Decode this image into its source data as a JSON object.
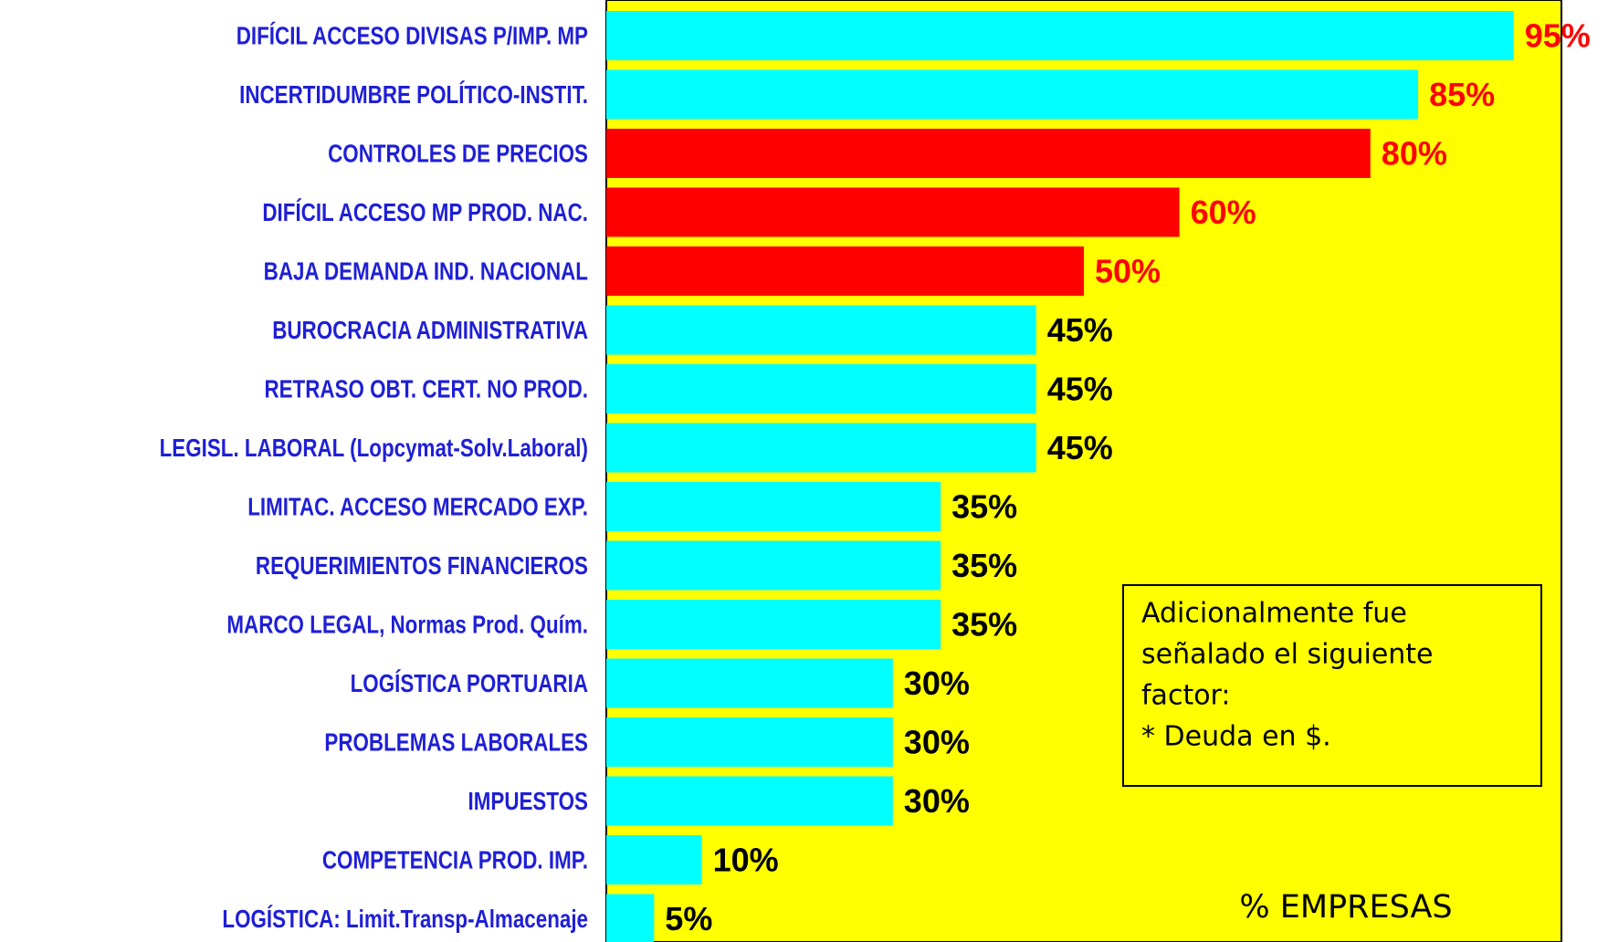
{
  "chart_data": {
    "type": "bar",
    "orientation": "horizontal",
    "categories": [
      "DIFÍCIL ACCESO DIVISAS P/IMP. MP",
      "INCERTIDUMBRE POLÍTICO-INSTIT.",
      "CONTROLES DE PRECIOS",
      "DIFÍCIL ACCESO MP PROD. NAC.",
      "BAJA DEMANDA IND. NACIONAL",
      "BUROCRACIA ADMINISTRATIVA",
      "RETRASO OBT. CERT. NO PROD.",
      "LEGISL. LABORAL (Lopcymat-Solv.Laboral)",
      "LIMITAC. ACCESO MERCADO EXP.",
      "REQUERIMIENTOS FINANCIEROS",
      "MARCO LEGAL, Normas Prod. Quím.",
      "LOGÍSTICA PORTUARIA",
      "PROBLEMAS LABORALES",
      "IMPUESTOS",
      "COMPETENCIA PROD. IMP.",
      "LOGÍSTICA: Limit.Transp-Almacenaje"
    ],
    "values": [
      95,
      85,
      80,
      60,
      50,
      45,
      45,
      45,
      35,
      35,
      35,
      30,
      30,
      30,
      10,
      5
    ],
    "value_labels": [
      "95%",
      "85%",
      "80%",
      "60%",
      "50%",
      "45%",
      "45%",
      "45%",
      "35%",
      "35%",
      "35%",
      "30%",
      "30%",
      "30%",
      "10%",
      "5%"
    ],
    "colors": [
      "#00ffff",
      "#00ffff",
      "#ff0000",
      "#ff0000",
      "#ff0000",
      "#00ffff",
      "#00ffff",
      "#00ffff",
      "#00ffff",
      "#00ffff",
      "#00ffff",
      "#00ffff",
      "#00ffff",
      "#00ffff",
      "#00ffff",
      "#00ffff"
    ],
    "value_label_colors": [
      "#ff0000",
      "#ff0000",
      "#ff0000",
      "#ff0000",
      "#ff0000",
      "#000000",
      "#000000",
      "#000000",
      "#000000",
      "#000000",
      "#000000",
      "#000000",
      "#000000",
      "#000000",
      "#000000",
      "#000000"
    ],
    "plot_background": "#ffff00",
    "xlim": [
      0,
      100
    ],
    "xlabel": "% EMPRESAS",
    "annotation": [
      "Adicionalmente fue",
      "señalado el siguiente",
      "factor:",
      "* Deuda en $."
    ]
  }
}
